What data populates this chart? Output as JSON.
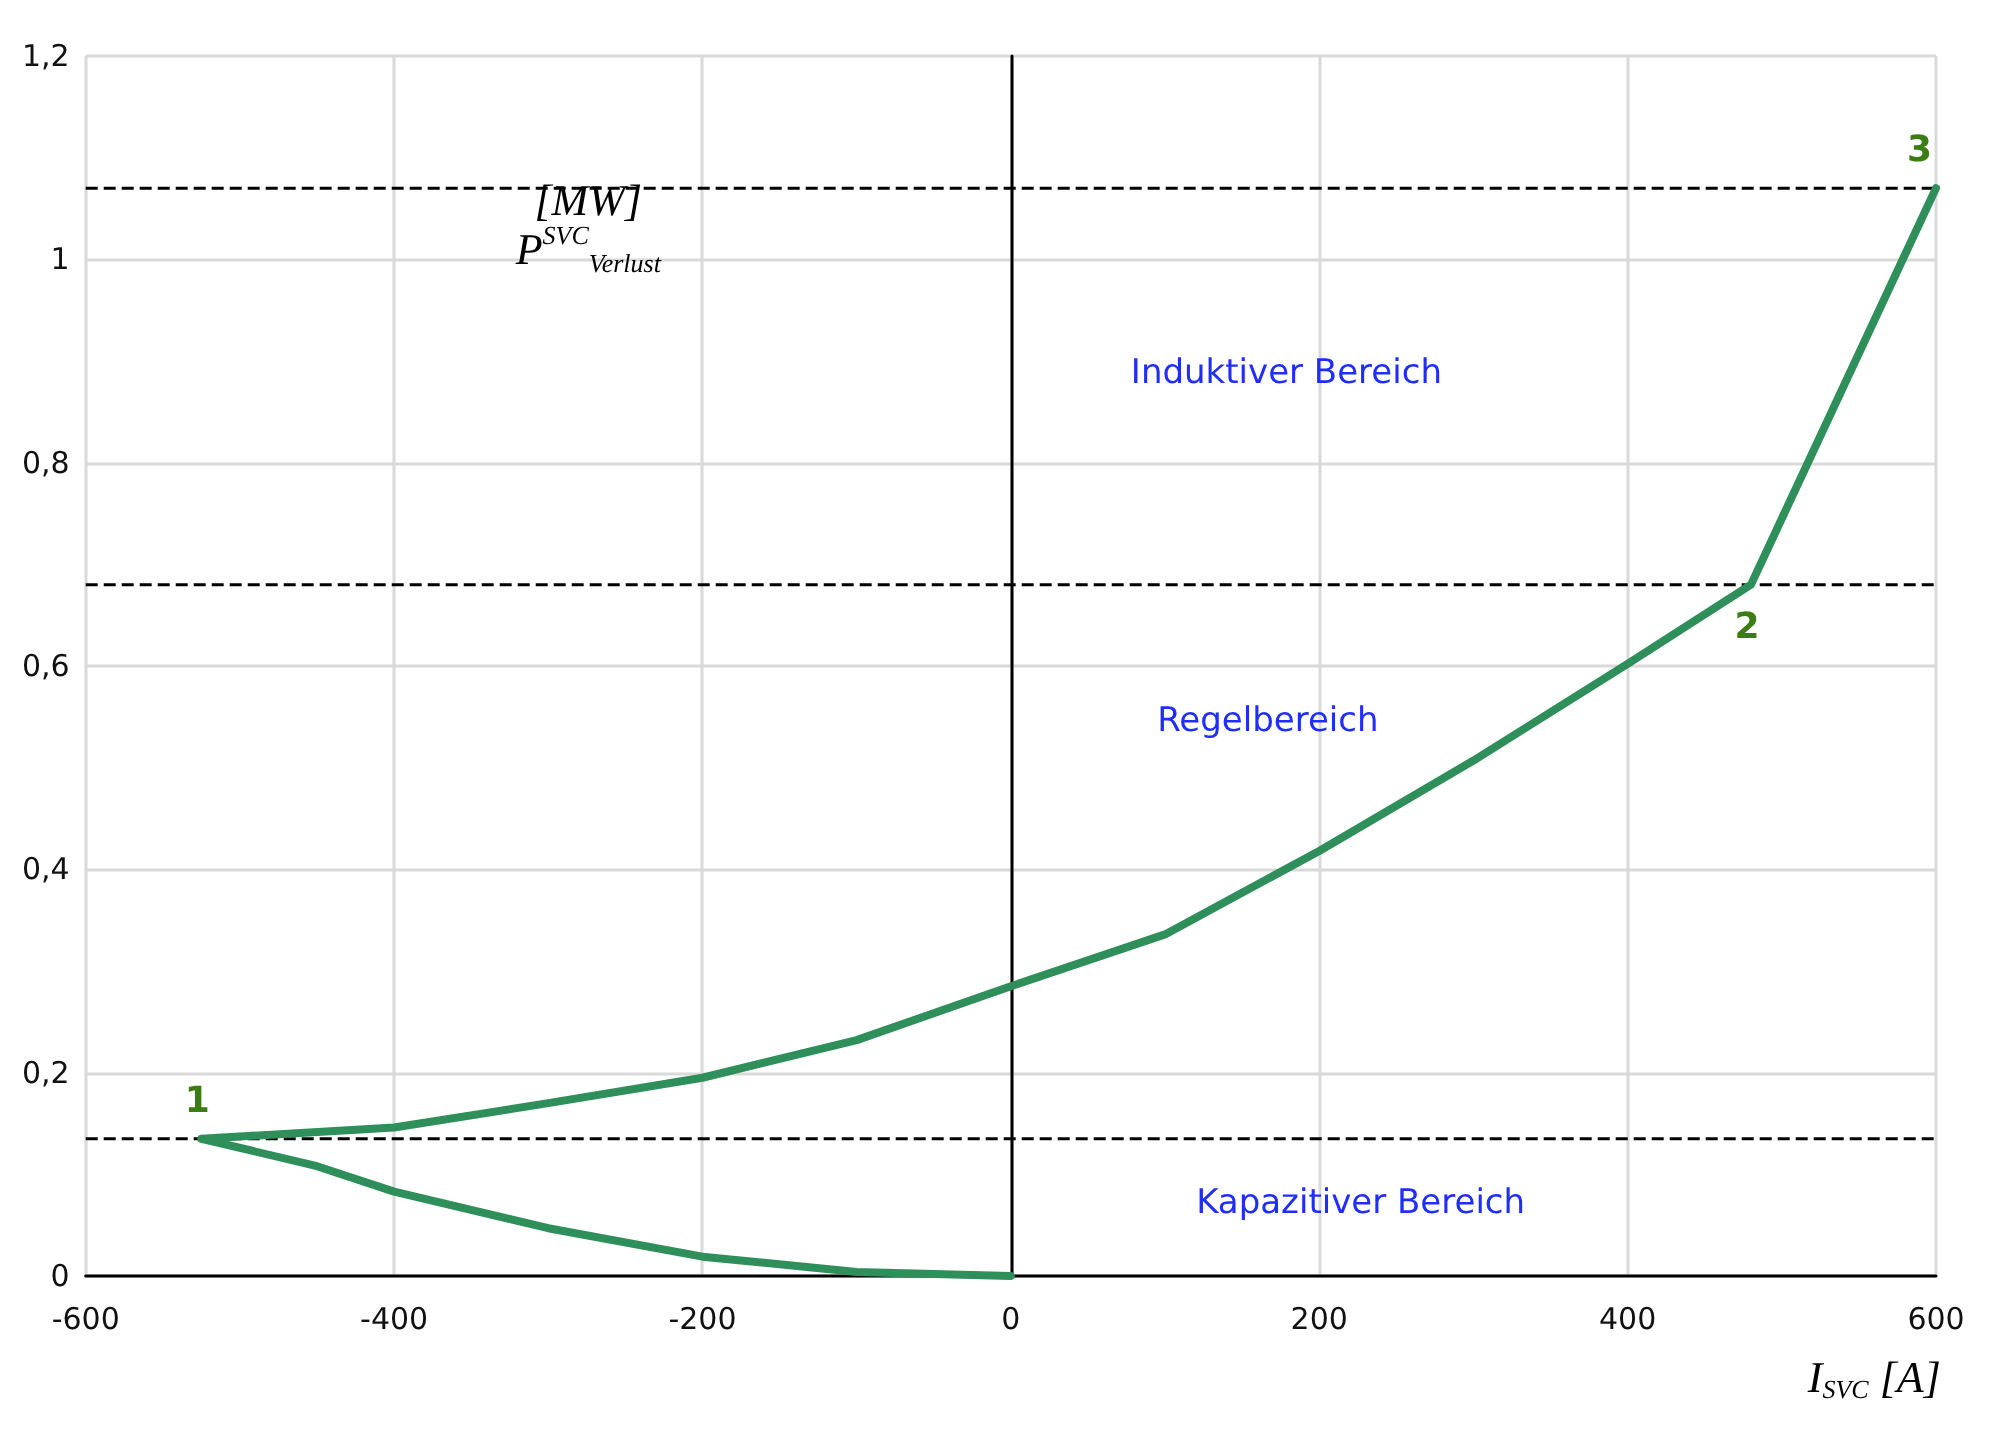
{
  "chart_data": {
    "type": "line",
    "xlabel": "I$_{SVC}$ [A]",
    "ylabel": "[MW] P$^{SVC}$$_{Verlust}$",
    "series": [
      {
        "color": "#2f8f5b",
        "x": [
          0,
          -100,
          -200,
          -300,
          -400,
          -450,
          -525,
          -400,
          -300,
          -200,
          -100,
          0,
          100,
          200,
          300,
          400,
          480,
          600
        ],
        "values": [
          0,
          0.004,
          0.019,
          0.047,
          0.083,
          0.108,
          0.135,
          0.146,
          0.17,
          0.195,
          0.232,
          0.285,
          0.336,
          0.418,
          0.507,
          0.602,
          0.68,
          1.07
        ]
      }
    ],
    "xlim": [
      -600,
      600
    ],
    "ylim": [
      0,
      1.2
    ],
    "xticks": [
      -600,
      -400,
      -200,
      0,
      200,
      400,
      600
    ],
    "yticks": [
      0,
      {
        "value": 0.2,
        "label": "0,2"
      },
      {
        "value": 0.4,
        "label": "0,4"
      },
      {
        "value": 0.6,
        "label": "0,6"
      },
      {
        "value": 0.8,
        "label": "0,8"
      },
      1,
      {
        "value": 1.2,
        "label": "1,2"
      }
    ],
    "grid": true,
    "marker": "none",
    "line_style": "solid",
    "ref_lines": [
      {
        "axis": "y",
        "value": 0.135,
        "color": "#000000",
        "line_style": "dashed"
      },
      {
        "axis": "y",
        "value": 0.68,
        "color": "#000000",
        "line_style": "dashed"
      },
      {
        "axis": "y",
        "value": 1.07,
        "color": "#000000",
        "line_style": "dashed"
      }
    ],
    "annotations": [
      {
        "text": "1",
        "x": -525,
        "y": 0.135
      },
      {
        "text": "2",
        "x": 480,
        "y": 0.68
      },
      {
        "text": "3",
        "x": 600,
        "y": 1.07
      },
      "Induktiver Bereich",
      "Regelbereich",
      "Kapazitiver Bereich"
    ]
  }
}
